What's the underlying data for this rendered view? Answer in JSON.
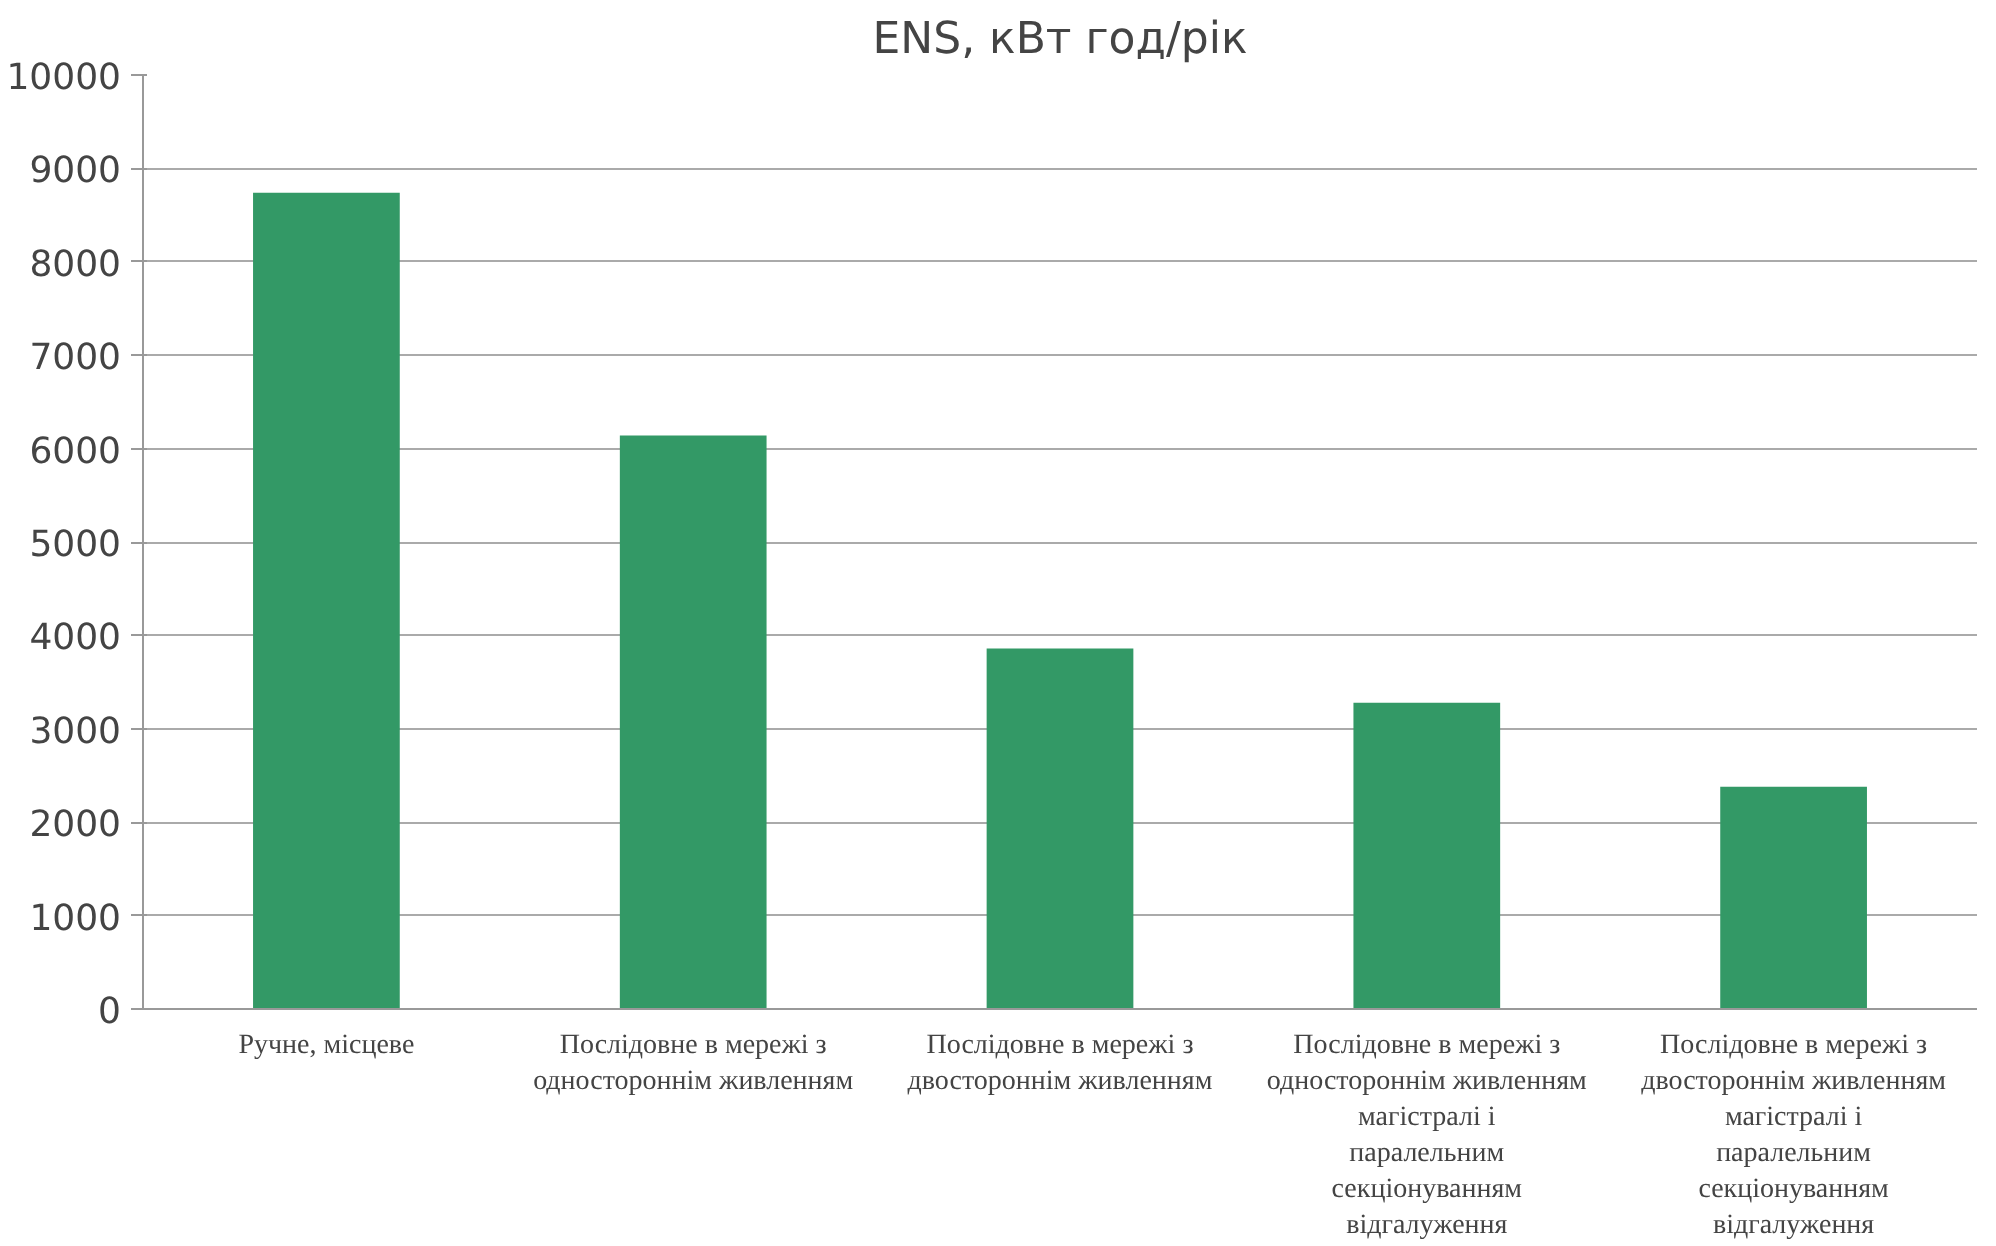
{
  "chart_data": {
    "type": "bar",
    "title": "ENS, кВт год/рік",
    "categories": [
      "Ручне, місцеве",
      "Послідовне в мережі з одностороннім живленням",
      "Послідовне в мережі з двостороннім живленням",
      "Послідовне в мережі з одностороннім живленням магістралі і паралельним секціонуванням відгалуження",
      "Послідовне в мережі з двостороннім живленням магістралі і паралельним секціонуванням відгалуження"
    ],
    "values": [
      8740,
      6140,
      3860,
      3280,
      2380
    ],
    "color": "#339966",
    "ylim": [
      0,
      10000
    ],
    "yticks": [
      0,
      1000,
      2000,
      3000,
      4000,
      5000,
      6000,
      7000,
      8000,
      9000,
      10000
    ],
    "grid": "y"
  }
}
